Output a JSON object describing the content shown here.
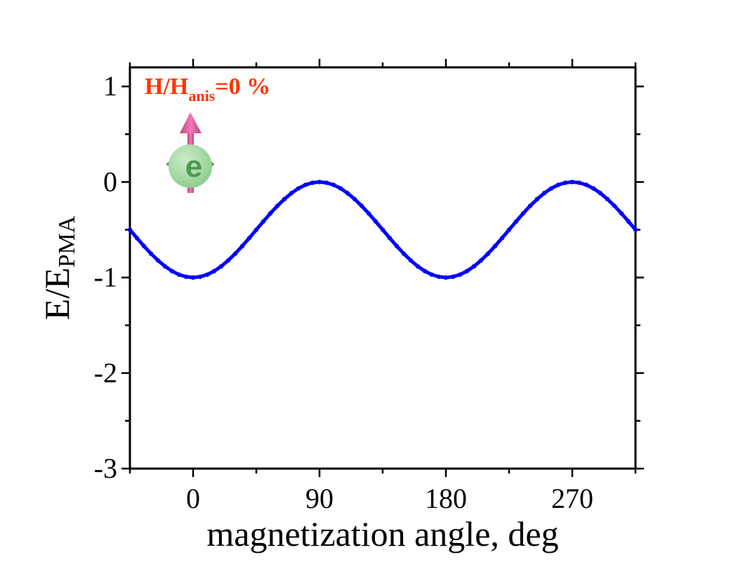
{
  "chart_data": {
    "type": "line",
    "xlabel": "magnetization angle, deg",
    "ylabel_main": "E/E",
    "ylabel_sub": "PMA",
    "xlim": [
      -45,
      315
    ],
    "ylim": [
      -3,
      1.2
    ],
    "x_ticks": [
      0,
      90,
      180,
      270
    ],
    "y_ticks": [
      1,
      0,
      -1,
      -2,
      -3
    ],
    "annotation": {
      "main": "H/H",
      "sub": "anis",
      "suffix": "=0 %",
      "color": "#ff3300"
    },
    "series": [
      {
        "color": "#0000ff",
        "x": [
          -45,
          -40,
          -35,
          -30,
          -25,
          -20,
          -15,
          -10,
          -5,
          0,
          5,
          10,
          15,
          20,
          25,
          30,
          35,
          40,
          45,
          50,
          55,
          60,
          65,
          70,
          75,
          80,
          85,
          90,
          95,
          100,
          105,
          110,
          115,
          120,
          125,
          130,
          135,
          140,
          145,
          150,
          155,
          160,
          165,
          170,
          175,
          180,
          185,
          190,
          195,
          200,
          205,
          210,
          215,
          220,
          225,
          230,
          235,
          240,
          245,
          250,
          255,
          260,
          265,
          270,
          275,
          280,
          285,
          290,
          295,
          300,
          305,
          310,
          315
        ],
        "y": [
          -0.5,
          -0.587,
          -0.671,
          -0.75,
          -0.821,
          -0.883,
          -0.933,
          -0.97,
          -0.992,
          -1.0,
          -0.992,
          -0.97,
          -0.933,
          -0.883,
          -0.821,
          -0.75,
          -0.671,
          -0.587,
          -0.5,
          -0.413,
          -0.329,
          -0.25,
          -0.179,
          -0.117,
          -0.067,
          -0.03,
          -0.008,
          0.0,
          -0.008,
          -0.03,
          -0.067,
          -0.117,
          -0.179,
          -0.25,
          -0.329,
          -0.413,
          -0.5,
          -0.587,
          -0.671,
          -0.75,
          -0.821,
          -0.883,
          -0.933,
          -0.97,
          -0.992,
          -1.0,
          -0.992,
          -0.97,
          -0.933,
          -0.883,
          -0.821,
          -0.75,
          -0.671,
          -0.587,
          -0.5,
          -0.413,
          -0.329,
          -0.25,
          -0.179,
          -0.117,
          -0.067,
          -0.03,
          -0.008,
          0.0,
          -0.008,
          -0.03,
          -0.067,
          -0.117,
          -0.179,
          -0.25,
          -0.329,
          -0.413,
          -0.5
        ]
      }
    ],
    "grid": false,
    "legend": "none"
  },
  "icon": {
    "letter": "e",
    "name": "electron-spin-icon"
  }
}
